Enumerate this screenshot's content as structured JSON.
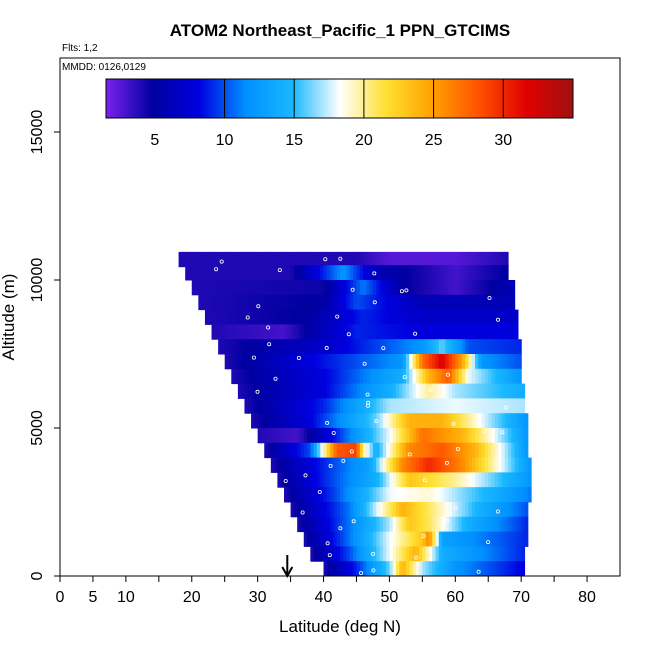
{
  "chart_data": {
    "type": "heatmap",
    "title": "ATOM2 Northeast_Pacific_1 PPN_GTCIMS",
    "flights_note": "Flts: 1,2",
    "dates_note": "MMDD: 0126,0129",
    "xlabel": "Latitude (deg N)",
    "ylabel": "Altitude (m)",
    "xlim": [
      0,
      85
    ],
    "ylim": [
      0,
      17500
    ],
    "x_ticks": [
      0,
      5,
      10,
      20,
      30,
      40,
      50,
      60,
      70,
      80
    ],
    "x_minor_ticks": [
      15,
      25,
      35,
      45,
      55,
      65,
      75
    ],
    "y_ticks": [
      0,
      5000,
      10000,
      15000
    ],
    "colorbar": {
      "min": 1.5,
      "max": 35,
      "ticks": [
        5,
        10,
        15,
        20,
        25,
        30
      ],
      "colors": [
        "#7a22ee",
        "#0000a0",
        "#0000e0",
        "#0090ff",
        "#19b8ff",
        "#ffffff",
        "#ffe030",
        "#ffa000",
        "#ff5000",
        "#e00000",
        "#a01010"
      ]
    },
    "marker": {
      "latitude": 34.5,
      "label": "arrow"
    },
    "levels": [
      {
        "alt": 10700,
        "lat_min": 18,
        "lat_max": 68,
        "stops": [
          [
            18,
            4
          ],
          [
            45,
            4
          ],
          [
            50,
            2.5
          ],
          [
            60,
            2.5
          ],
          [
            68,
            4
          ]
        ]
      },
      {
        "alt": 10250,
        "lat_min": 19,
        "lat_max": 68,
        "stops": [
          [
            19,
            4
          ],
          [
            35,
            4
          ],
          [
            43,
            12
          ],
          [
            48,
            6
          ],
          [
            60,
            3
          ],
          [
            68,
            5
          ]
        ]
      },
      {
        "alt": 9750,
        "lat_min": 20,
        "lat_max": 69,
        "stops": [
          [
            20,
            4
          ],
          [
            40,
            4.5
          ],
          [
            46,
            11
          ],
          [
            52,
            5
          ],
          [
            60,
            3
          ],
          [
            69,
            6
          ]
        ]
      },
      {
        "alt": 9250,
        "lat_min": 21,
        "lat_max": 69,
        "stops": [
          [
            21,
            4
          ],
          [
            40,
            5
          ],
          [
            45,
            10
          ],
          [
            55,
            6
          ],
          [
            69,
            6
          ]
        ]
      },
      {
        "alt": 8750,
        "lat_min": 22,
        "lat_max": 69.5,
        "stops": [
          [
            22,
            4
          ],
          [
            38,
            5
          ],
          [
            46,
            9
          ],
          [
            55,
            7
          ],
          [
            69.5,
            7
          ]
        ]
      },
      {
        "alt": 8250,
        "lat_min": 23,
        "lat_max": 69.5,
        "stops": [
          [
            23,
            4
          ],
          [
            34,
            3
          ],
          [
            45,
            9
          ],
          [
            55,
            8
          ],
          [
            69.5,
            8
          ]
        ]
      },
      {
        "alt": 7750,
        "lat_min": 24,
        "lat_max": 70,
        "stops": [
          [
            24,
            4
          ],
          [
            40,
            7
          ],
          [
            55,
            12
          ],
          [
            58,
            16
          ],
          [
            62,
            10
          ],
          [
            70,
            9
          ]
        ]
      },
      {
        "alt": 7250,
        "lat_min": 25,
        "lat_max": 70,
        "stops": [
          [
            25,
            4
          ],
          [
            38,
            8
          ],
          [
            52,
            12
          ],
          [
            55,
            27
          ],
          [
            58,
            32
          ],
          [
            61,
            25
          ],
          [
            64,
            12
          ],
          [
            70,
            10
          ]
        ]
      },
      {
        "alt": 6750,
        "lat_min": 26,
        "lat_max": 70,
        "stops": [
          [
            26,
            4
          ],
          [
            40,
            8
          ],
          [
            52,
            14
          ],
          [
            56,
            24
          ],
          [
            59,
            28
          ],
          [
            62,
            18
          ],
          [
            70,
            12
          ]
        ]
      },
      {
        "alt": 6250,
        "lat_min": 27,
        "lat_max": 70.5,
        "stops": [
          [
            27,
            4
          ],
          [
            40,
            8
          ],
          [
            50,
            14
          ],
          [
            56,
            20
          ],
          [
            60,
            17
          ],
          [
            70.5,
            14
          ]
        ]
      },
      {
        "alt": 5750,
        "lat_min": 28,
        "lat_max": 70.5,
        "stops": [
          [
            28,
            4
          ],
          [
            40,
            9
          ],
          [
            50,
            17
          ],
          [
            60,
            18
          ],
          [
            70.5,
            17
          ]
        ]
      },
      {
        "alt": 5250,
        "lat_min": 29,
        "lat_max": 71,
        "stops": [
          [
            29,
            4
          ],
          [
            38,
            8
          ],
          [
            48,
            16
          ],
          [
            53,
            24
          ],
          [
            58,
            24
          ],
          [
            64,
            18
          ],
          [
            71,
            12
          ]
        ]
      },
      {
        "alt": 4750,
        "lat_min": 30,
        "lat_max": 71,
        "stops": [
          [
            30,
            4
          ],
          [
            36,
            3
          ],
          [
            42,
            9
          ],
          [
            50,
            18
          ],
          [
            55,
            27
          ],
          [
            61,
            24
          ],
          [
            71,
            12
          ]
        ]
      },
      {
        "alt": 4250,
        "lat_min": 31,
        "lat_max": 71,
        "stops": [
          [
            31,
            4
          ],
          [
            38,
            10
          ],
          [
            42,
            28
          ],
          [
            45,
            29
          ],
          [
            46,
            20
          ],
          [
            48,
            14
          ],
          [
            53,
            26
          ],
          [
            58,
            28
          ],
          [
            63,
            24
          ],
          [
            71,
            12
          ]
        ]
      },
      {
        "alt": 3750,
        "lat_min": 32,
        "lat_max": 71.5,
        "stops": [
          [
            32,
            4
          ],
          [
            40,
            9
          ],
          [
            47,
            13
          ],
          [
            52,
            26
          ],
          [
            56,
            30
          ],
          [
            61,
            26
          ],
          [
            71.5,
            12
          ]
        ]
      },
      {
        "alt": 3250,
        "lat_min": 33,
        "lat_max": 71.5,
        "stops": [
          [
            33,
            4
          ],
          [
            40,
            9
          ],
          [
            48,
            14
          ],
          [
            53,
            23
          ],
          [
            60,
            20
          ],
          [
            71.5,
            12
          ]
        ]
      },
      {
        "alt": 2750,
        "lat_min": 34,
        "lat_max": 71.5,
        "stops": [
          [
            34,
            4
          ],
          [
            42,
            10
          ],
          [
            50,
            18
          ],
          [
            56,
            19
          ],
          [
            64,
            15
          ],
          [
            71.5,
            11
          ]
        ]
      },
      {
        "alt": 2250,
        "lat_min": 35,
        "lat_max": 71,
        "stops": [
          [
            35,
            4
          ],
          [
            44,
            11
          ],
          [
            52,
            24
          ],
          [
            57,
            20
          ],
          [
            64,
            14
          ],
          [
            71,
            10
          ]
        ]
      },
      {
        "alt": 1750,
        "lat_min": 36,
        "lat_max": 71,
        "stops": [
          [
            36,
            4
          ],
          [
            44,
            11
          ],
          [
            50,
            17
          ],
          [
            53,
            23
          ],
          [
            56,
            21
          ],
          [
            62,
            14
          ],
          [
            71,
            9
          ]
        ]
      },
      {
        "alt": 1250,
        "lat_min": 37,
        "lat_max": 71,
        "stops": [
          [
            37,
            4
          ],
          [
            44,
            11
          ],
          [
            50,
            18
          ],
          [
            55,
            23
          ],
          [
            56,
            26
          ],
          [
            58,
            13
          ],
          [
            71,
            9
          ]
        ]
      },
      {
        "alt": 750,
        "lat_min": 38,
        "lat_max": 70.5,
        "stops": [
          [
            38,
            4
          ],
          [
            44,
            10
          ],
          [
            50,
            18
          ],
          [
            54,
            24
          ],
          [
            58,
            14
          ],
          [
            70.5,
            9
          ]
        ]
      },
      {
        "alt": 250,
        "lat_min": 40,
        "lat_max": 70.5,
        "stops": [
          [
            40,
            4
          ],
          [
            45,
            9
          ],
          [
            50,
            16
          ],
          [
            52,
            24
          ],
          [
            55,
            17
          ],
          [
            60,
            12
          ],
          [
            70.5,
            8
          ]
        ]
      }
    ]
  }
}
